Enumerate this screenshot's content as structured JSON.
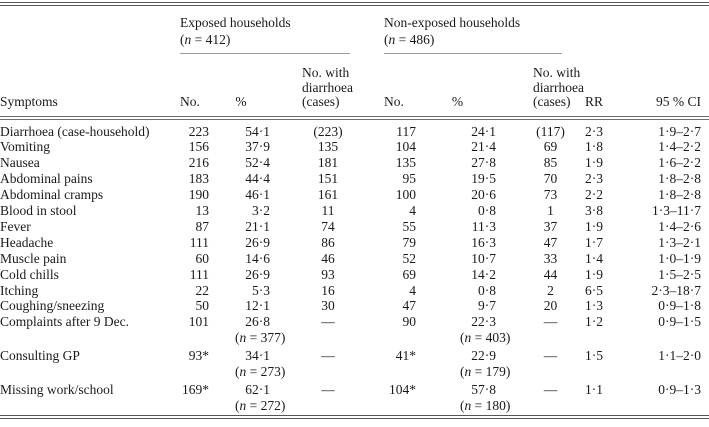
{
  "colors": {
    "text": "#1a1a1a",
    "rule_dark": "#565656",
    "rule_light": "#9a9a9a",
    "background": "#ffffff"
  },
  "table": {
    "groups": [
      {
        "label": "Exposed households",
        "n_text": "(n = 412)"
      },
      {
        "label": "Non-exposed households",
        "n_text": "(n = 486)"
      }
    ],
    "headers": {
      "symptoms": "Symptoms",
      "no": "No.",
      "pct": "%",
      "cases_l1": "No. with",
      "cases_l2": "diarrhoea",
      "cases_l3": "(cases)",
      "rr": "RR",
      "ci": "95 % CI"
    },
    "rows": [
      {
        "symptom": "Diarrhoea (case-household)",
        "e_no": "223",
        "e_pct": "54·1",
        "e_cases": "(223)",
        "n_no": "117",
        "n_pct": "24·1",
        "n_cases": "(117)",
        "rr": "2·3",
        "ci": "1·9–2·7"
      },
      {
        "symptom": "Vomiting",
        "e_no": "156",
        "e_pct": "37·9",
        "e_cases": "135",
        "n_no": "104",
        "n_pct": "21·4",
        "n_cases": "69",
        "rr": "1·8",
        "ci": "1·4–2·2"
      },
      {
        "symptom": "Nausea",
        "e_no": "216",
        "e_pct": "52·4",
        "e_cases": "181",
        "n_no": "135",
        "n_pct": "27·8",
        "n_cases": "85",
        "rr": "1·9",
        "ci": "1·6–2·2"
      },
      {
        "symptom": "Abdominal pains",
        "e_no": "183",
        "e_pct": "44·4",
        "e_cases": "151",
        "n_no": "95",
        "n_pct": "19·5",
        "n_cases": "70",
        "rr": "2·3",
        "ci": "1·8–2·8"
      },
      {
        "symptom": "Abdominal cramps",
        "e_no": "190",
        "e_pct": "46·1",
        "e_cases": "161",
        "n_no": "100",
        "n_pct": "20·6",
        "n_cases": "73",
        "rr": "2·2",
        "ci": "1·8–2·8"
      },
      {
        "symptom": "Blood in stool",
        "e_no": "13",
        "e_pct": "3·2",
        "e_cases": "11",
        "n_no": "4",
        "n_pct": "0·8",
        "n_cases": "1",
        "rr": "3·8",
        "ci": "1·3–11·7"
      },
      {
        "symptom": "Fever",
        "e_no": "87",
        "e_pct": "21·1",
        "e_cases": "74",
        "n_no": "55",
        "n_pct": "11·3",
        "n_cases": "37",
        "rr": "1·9",
        "ci": "1·4–2·6"
      },
      {
        "symptom": "Headache",
        "e_no": "111",
        "e_pct": "26·9",
        "e_cases": "86",
        "n_no": "79",
        "n_pct": "16·3",
        "n_cases": "47",
        "rr": "1·7",
        "ci": "1·3–2·1"
      },
      {
        "symptom": "Muscle pain",
        "e_no": "60",
        "e_pct": "14·6",
        "e_cases": "46",
        "n_no": "52",
        "n_pct": "10·7",
        "n_cases": "33",
        "rr": "1·4",
        "ci": "1·0–1·9"
      },
      {
        "symptom": "Cold chills",
        "e_no": "111",
        "e_pct": "26·9",
        "e_cases": "93",
        "n_no": "69",
        "n_pct": "14·2",
        "n_cases": "44",
        "rr": "1·9",
        "ci": "1·5–2·5"
      },
      {
        "symptom": "Itching",
        "e_no": "22",
        "e_pct": "5·3",
        "e_cases": "16",
        "n_no": "4",
        "n_pct": "0·8",
        "n_cases": "2",
        "rr": "6·5",
        "ci": "2·3–18·7"
      },
      {
        "symptom": "Coughing/sneezing",
        "e_no": "50",
        "e_pct": "12·1",
        "e_cases": "30",
        "n_no": "47",
        "n_pct": "9·7",
        "n_cases": "20",
        "rr": "1·3",
        "ci": "0·9–1·8"
      },
      {
        "symptom": "Complaints after 9 Dec.",
        "e_no": "101",
        "e_pct": "26·8",
        "e_sub": "(n = 377)",
        "e_cases": "—",
        "n_no": "90",
        "n_pct": "22·3",
        "n_sub": "(n = 403)",
        "n_cases": "—",
        "rr": "1·2",
        "ci": "0·9–1·5"
      },
      {
        "symptom": "Consulting GP",
        "e_no": "93*",
        "e_pct": "34·1",
        "e_sub": "(n = 273)",
        "e_cases": "—",
        "n_no": "41*",
        "n_pct": "22·9",
        "n_sub": "(n = 179)",
        "n_cases": "—",
        "rr": "1·5",
        "ci": "1·1–2·0",
        "spaced": true
      },
      {
        "symptom": "Missing work/school",
        "e_no": "169*",
        "e_pct": "62·1",
        "e_sub": "(n = 272)",
        "e_cases": "—",
        "n_no": "104*",
        "n_pct": "57·8",
        "n_sub": "(n = 180)",
        "n_cases": "—",
        "rr": "1·1",
        "ci": "0·9–1·3",
        "spaced": true
      }
    ]
  }
}
